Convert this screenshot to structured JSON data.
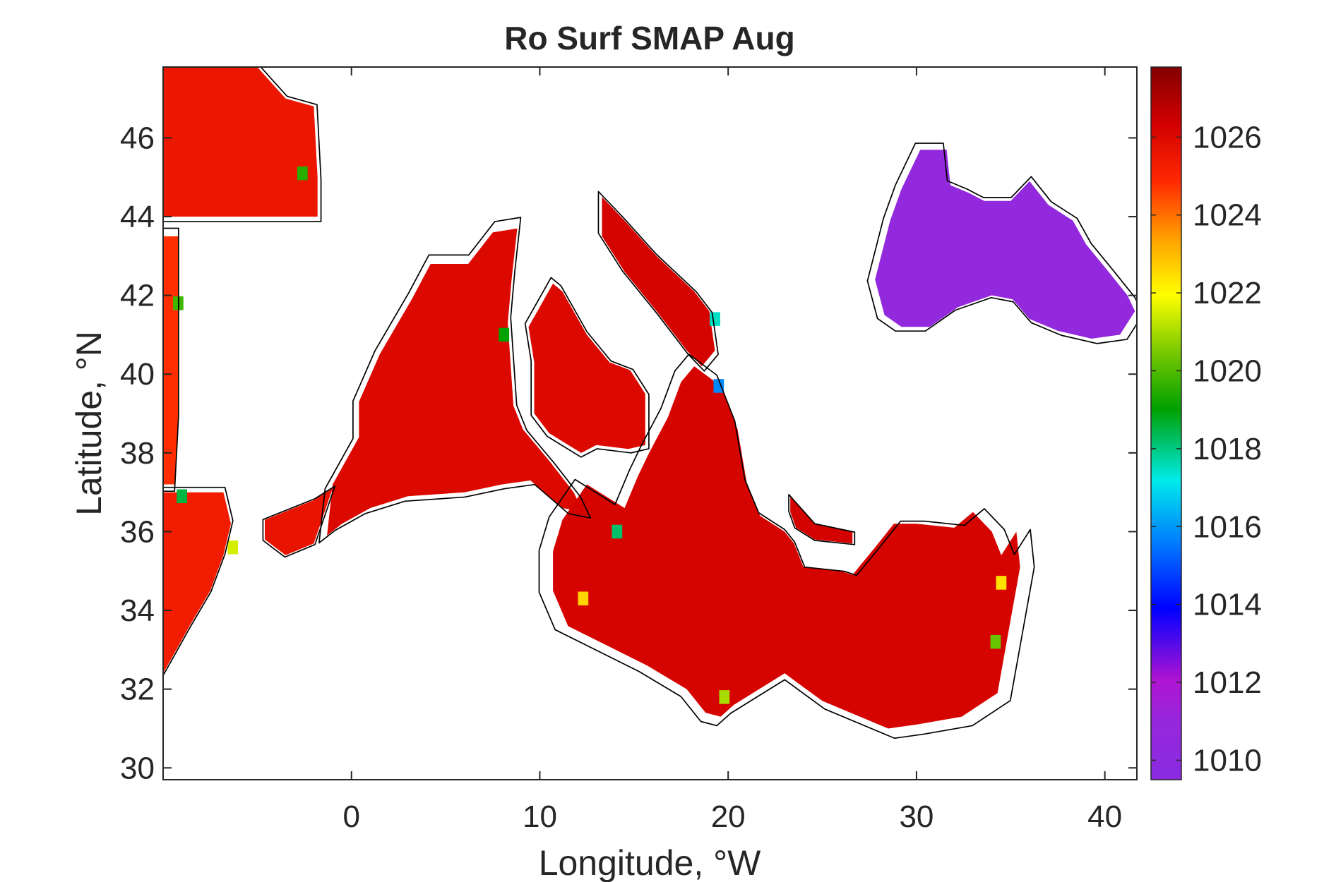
{
  "chart_data": {
    "type": "heatmap",
    "title": "Ro Surf SMAP Aug",
    "xlabel": "Longitude, °W",
    "ylabel": "Latitude, °N",
    "xlim": [
      -10,
      41.7
    ],
    "ylim": [
      29.7,
      47.8
    ],
    "xticks": [
      0,
      10,
      20,
      30,
      40
    ],
    "xtick_labels": [
      "0",
      "10",
      "20",
      "30",
      "40"
    ],
    "yticks": [
      30,
      32,
      34,
      36,
      38,
      40,
      42,
      44,
      46
    ],
    "ytick_labels": [
      "30",
      "32",
      "34",
      "36",
      "38",
      "40",
      "42",
      "44",
      "46"
    ],
    "colorbar": {
      "range": [
        1009.5,
        1027.8
      ],
      "ticks": [
        1010,
        1012,
        1014,
        1016,
        1018,
        1020,
        1022,
        1024,
        1026
      ],
      "tick_labels": [
        "1010",
        "1012",
        "1014",
        "1016",
        "1018",
        "1020",
        "1022",
        "1024",
        "1026"
      ],
      "colormap": "jet-like (violet → blue → cyan → green → yellow → orange → red → dark red)"
    },
    "grid": false,
    "regions": [
      {
        "id": "bay-of-biscay",
        "value": 1025.5,
        "polygon": [
          [
            -10,
            47.8
          ],
          [
            -5,
            47.8
          ],
          [
            -3.5,
            47
          ],
          [
            -2,
            46.8
          ],
          [
            -1.8,
            45
          ],
          [
            -1.8,
            44
          ],
          [
            -10,
            44
          ]
        ]
      },
      {
        "id": "atlantic-morocco",
        "value": 1025.3,
        "polygon": [
          [
            -10,
            37
          ],
          [
            -6.8,
            37
          ],
          [
            -6.4,
            36.2
          ],
          [
            -6.8,
            35.4
          ],
          [
            -7.5,
            34.5
          ],
          [
            -8.6,
            33.6
          ],
          [
            -9.3,
            33
          ],
          [
            -10,
            32.4
          ]
        ]
      },
      {
        "id": "portugal-coast-strip",
        "value": 1024.8,
        "polygon": [
          [
            -10,
            43.5
          ],
          [
            -9.2,
            43.5
          ],
          [
            -9.2,
            39
          ],
          [
            -9.4,
            37.2
          ],
          [
            -10,
            37.2
          ]
        ]
      },
      {
        "id": "alboran-sea",
        "value": 1025.6,
        "polygon": [
          [
            -4.6,
            36.3
          ],
          [
            -2,
            36.8
          ],
          [
            -1,
            37.1
          ],
          [
            -2,
            35.7
          ],
          [
            -3.5,
            35.4
          ],
          [
            -4.6,
            35.8
          ]
        ]
      },
      {
        "id": "western-mediterranean",
        "value": 1026.0,
        "polygon": [
          [
            -1,
            37.2
          ],
          [
            0.4,
            38.4
          ],
          [
            0.4,
            39.3
          ],
          [
            1.5,
            40.5
          ],
          [
            3.2,
            41.9
          ],
          [
            4.2,
            42.8
          ],
          [
            6.2,
            42.8
          ],
          [
            7.5,
            43.6
          ],
          [
            8.8,
            43.7
          ],
          [
            8.5,
            42.4
          ],
          [
            8.3,
            41.3
          ],
          [
            8.6,
            39.2
          ],
          [
            9.1,
            38.6
          ],
          [
            10.5,
            37.8
          ],
          [
            11.8,
            37
          ],
          [
            12.3,
            36.5
          ],
          [
            11.2,
            36.6
          ],
          [
            9.5,
            37.3
          ],
          [
            8,
            37.2
          ],
          [
            6,
            37
          ],
          [
            3,
            36.9
          ],
          [
            1,
            36.6
          ],
          [
            -0.5,
            36.2
          ],
          [
            -1.3,
            35.9
          ]
        ]
      },
      {
        "id": "tyrrhenian-sea",
        "value": 1026.0,
        "polygon": [
          [
            9.4,
            41.2
          ],
          [
            10.7,
            42.3
          ],
          [
            11.2,
            42.1
          ],
          [
            12.5,
            41
          ],
          [
            13.7,
            40.3
          ],
          [
            14.8,
            40.1
          ],
          [
            15.6,
            39.5
          ],
          [
            15.6,
            38.2
          ],
          [
            14.7,
            38.1
          ],
          [
            13,
            38.2
          ],
          [
            12.2,
            38
          ],
          [
            10.5,
            38.5
          ],
          [
            9.7,
            39
          ],
          [
            9.7,
            40.3
          ]
        ]
      },
      {
        "id": "adriatic-sea",
        "value": 1026.2,
        "polygon": [
          [
            13.3,
            44.5
          ],
          [
            14.5,
            43.9
          ],
          [
            16.2,
            43
          ],
          [
            18.2,
            42.1
          ],
          [
            19,
            41.6
          ],
          [
            19.3,
            40.6
          ],
          [
            18.6,
            40.2
          ],
          [
            17.8,
            40.6
          ],
          [
            16.2,
            41.6
          ],
          [
            14.5,
            42.6
          ],
          [
            13.3,
            43.5
          ]
        ]
      },
      {
        "id": "central-eastern-med",
        "value": 1026.2,
        "polygon": [
          [
            11.2,
            36.3
          ],
          [
            12.5,
            37.2
          ],
          [
            14.5,
            36.6
          ],
          [
            15.2,
            37.4
          ],
          [
            15.8,
            38
          ],
          [
            16.8,
            38.9
          ],
          [
            17.5,
            39.8
          ],
          [
            18.2,
            40.2
          ],
          [
            19.6,
            39.7
          ],
          [
            20.5,
            38.6
          ],
          [
            21,
            37.2
          ],
          [
            21.7,
            36.4
          ],
          [
            23,
            36
          ],
          [
            23.5,
            35.7
          ],
          [
            24,
            35.1
          ],
          [
            26,
            35
          ],
          [
            26.6,
            34.9
          ],
          [
            27.8,
            35.6
          ],
          [
            28.8,
            36.2
          ],
          [
            30,
            36.2
          ],
          [
            32,
            36.1
          ],
          [
            33,
            36.5
          ],
          [
            34,
            36
          ],
          [
            34.5,
            35.4
          ],
          [
            35.3,
            36
          ],
          [
            35.5,
            35.1
          ],
          [
            34.9,
            33.5
          ],
          [
            34.3,
            31.9
          ],
          [
            32.4,
            31.3
          ],
          [
            30,
            31.1
          ],
          [
            28.5,
            31
          ],
          [
            25,
            31.7
          ],
          [
            23,
            32.4
          ],
          [
            20.3,
            31.6
          ],
          [
            19.6,
            31.3
          ],
          [
            18.8,
            31.4
          ],
          [
            17.8,
            32
          ],
          [
            15.7,
            32.6
          ],
          [
            13.6,
            33.1
          ],
          [
            11.5,
            33.6
          ],
          [
            10.7,
            34.5
          ],
          [
            10.7,
            35.5
          ]
        ]
      },
      {
        "id": "aegean-patch",
        "value": 1026.3,
        "polygon": [
          [
            23.3,
            36.9
          ],
          [
            24.6,
            36.2
          ],
          [
            26.6,
            36
          ],
          [
            26.6,
            35.7
          ],
          [
            24.6,
            35.8
          ],
          [
            23.6,
            36.1
          ],
          [
            23.3,
            36.5
          ]
        ]
      },
      {
        "id": "black-sea",
        "value": 1010.6,
        "polygon": [
          [
            27.8,
            42.4
          ],
          [
            28.6,
            43.9
          ],
          [
            29.2,
            44.7
          ],
          [
            30.2,
            45.7
          ],
          [
            31.6,
            45.7
          ],
          [
            31.8,
            44.8
          ],
          [
            32.8,
            44.6
          ],
          [
            33.6,
            44.4
          ],
          [
            35,
            44.4
          ],
          [
            36,
            44.9
          ],
          [
            37,
            44.3
          ],
          [
            38.3,
            43.9
          ],
          [
            39,
            43.3
          ],
          [
            40.2,
            42.6
          ],
          [
            41.2,
            42
          ],
          [
            41.6,
            41.6
          ],
          [
            40.8,
            41
          ],
          [
            39.3,
            40.9
          ],
          [
            37.5,
            41.1
          ],
          [
            36,
            41.4
          ],
          [
            35.1,
            41.9
          ],
          [
            34,
            42
          ],
          [
            32.2,
            41.7
          ],
          [
            30.7,
            41.2
          ],
          [
            29.2,
            41.2
          ],
          [
            28.3,
            41.5
          ]
        ]
      }
    ],
    "coast_anomalies": [
      {
        "lon": 19.5,
        "lat": 39.7,
        "value": 1015.8
      },
      {
        "lon": 19.3,
        "lat": 41.4,
        "value": 1017.5
      },
      {
        "lon": 14.1,
        "lat": 36.0,
        "value": 1018.2
      },
      {
        "lon": 8.1,
        "lat": 41.0,
        "value": 1019.0
      },
      {
        "lon": -2.6,
        "lat": 45.1,
        "value": 1019.5
      },
      {
        "lon": -9.2,
        "lat": 41.8,
        "value": 1019.8
      },
      {
        "lon": -9.0,
        "lat": 36.9,
        "value": 1018.5
      },
      {
        "lon": 34.2,
        "lat": 33.2,
        "value": 1020.3
      },
      {
        "lon": 12.3,
        "lat": 34.3,
        "value": 1022.6
      },
      {
        "lon": 34.5,
        "lat": 34.7,
        "value": 1022.4
      },
      {
        "lon": -6.3,
        "lat": 35.6,
        "value": 1021.5
      },
      {
        "lon": 19.8,
        "lat": 31.8,
        "value": 1021.0
      }
    ]
  }
}
